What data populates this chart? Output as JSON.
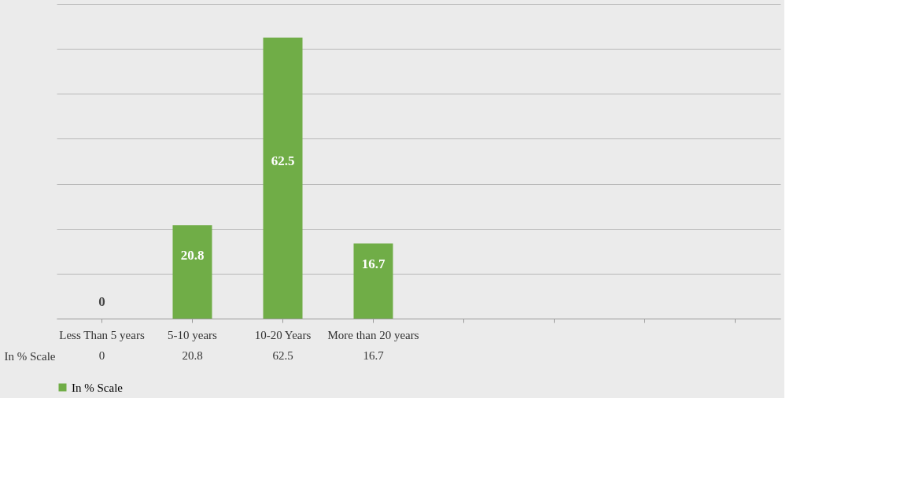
{
  "chart_data": {
    "type": "bar",
    "categories": [
      "Less Than 5 years",
      "5-10 years",
      "10-20 Years",
      "More than 20 years",
      null,
      null,
      null,
      null
    ],
    "series": [
      {
        "name": "In % Scale",
        "color": "#70ad47",
        "values": [
          0,
          20.8,
          62.5,
          16.7,
          null,
          null,
          null,
          null
        ],
        "value_labels": [
          "0",
          "20.8",
          "62.5",
          "16.7",
          null,
          null,
          null,
          null
        ]
      }
    ],
    "ylim": [
      0,
      70
    ],
    "yticks": [
      {
        "value": 0,
        "label": null
      },
      {
        "value": 10,
        "label": null
      },
      {
        "value": 20,
        "label": null
      },
      {
        "value": 30,
        "label": null
      },
      {
        "value": 40,
        "label": null
      },
      {
        "value": 50,
        "label": null
      },
      {
        "value": 60,
        "label": null
      },
      {
        "value": 70,
        "label": null
      }
    ],
    "tick_labels": "x",
    "grid": "y",
    "data_labels": true,
    "legend": "bottom"
  }
}
